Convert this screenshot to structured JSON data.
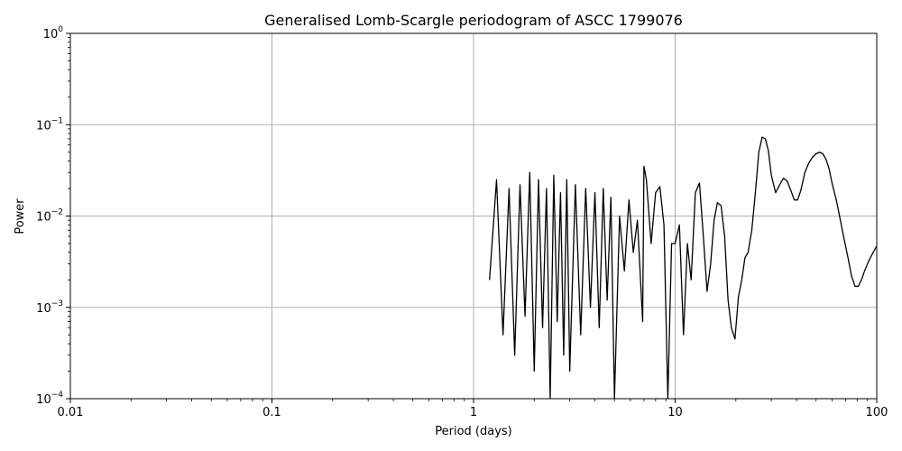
{
  "chart_data": {
    "type": "line",
    "title": "Generalised Lomb-Scargle periodogram of ASCC 1799076",
    "xlabel": "Period (days)",
    "ylabel": "Power",
    "xscale": "log",
    "yscale": "log",
    "xlim": [
      0.01,
      100
    ],
    "ylim": [
      0.0001,
      1
    ],
    "grid": true,
    "line_color": "#000000",
    "x_ticks": [
      {
        "value": 0.01,
        "label": "0.01"
      },
      {
        "value": 0.1,
        "label": "0.1"
      },
      {
        "value": 1,
        "label": "1"
      },
      {
        "value": 10,
        "label": "10"
      },
      {
        "value": 100,
        "label": "100"
      }
    ],
    "y_ticks": [
      {
        "value": 0.0001,
        "base": "10",
        "exp": "−4"
      },
      {
        "value": 0.001,
        "base": "10",
        "exp": "−3"
      },
      {
        "value": 0.01,
        "base": "10",
        "exp": "−2"
      },
      {
        "value": 0.1,
        "base": "10",
        "exp": "−1"
      },
      {
        "value": 1,
        "base": "10",
        "exp": "0"
      }
    ],
    "series": [
      {
        "x": [
          1.2,
          1.3,
          1.4,
          1.5,
          1.6,
          1.7,
          1.8,
          1.9,
          2.0,
          2.1,
          2.2,
          2.3,
          2.4,
          2.5,
          2.6,
          2.7,
          2.8,
          2.9,
          3.0,
          3.2,
          3.4,
          3.6,
          3.8,
          4.0,
          4.2,
          4.4,
          4.6,
          4.8,
          5.0,
          5.3,
          5.6,
          5.9,
          6.2,
          6.5,
          6.9,
          7.0,
          7.2,
          7.6,
          8.0,
          8.4,
          8.8,
          9.2,
          9.6,
          10.0,
          10.5,
          11.0,
          11.5,
          12.0,
          12.6,
          13.2,
          13.8,
          14.4,
          15.0,
          15.6,
          16.2,
          16.9,
          17.6,
          18.3,
          19.0,
          19.8,
          20.6,
          21.4,
          22.2,
          23.0,
          24.0,
          25.0,
          26.0,
          27.0,
          28.0,
          29.0,
          30.0,
          31.5,
          33.0,
          34.5,
          36.0,
          37.5,
          39.0,
          40.5,
          42.0,
          44.0,
          46.0,
          48.0,
          50.0,
          52.0,
          54.0,
          56.0,
          58.0,
          60.0,
          63.0,
          66.0,
          69.0,
          72.0,
          75.0,
          78.0,
          81.0,
          84.0,
          87.0,
          90.0,
          93.0,
          96.0,
          100.0
        ],
        "y": [
          0.002,
          0.025,
          0.0005,
          0.02,
          0.0003,
          0.022,
          0.0008,
          0.03,
          0.0002,
          0.025,
          0.0006,
          0.02,
          0.0001,
          0.028,
          0.0007,
          0.018,
          0.0003,
          0.025,
          0.0002,
          0.022,
          0.0005,
          0.02,
          0.001,
          0.018,
          0.0006,
          0.02,
          0.0012,
          0.016,
          0.0001,
          0.01,
          0.0025,
          0.015,
          0.004,
          0.009,
          0.0007,
          0.035,
          0.025,
          0.005,
          0.018,
          0.021,
          0.008,
          0.0001,
          0.005,
          0.005,
          0.008,
          0.0005,
          0.005,
          0.002,
          0.018,
          0.023,
          0.006,
          0.0015,
          0.003,
          0.009,
          0.014,
          0.013,
          0.006,
          0.0012,
          0.0006,
          0.00045,
          0.0013,
          0.002,
          0.0035,
          0.004,
          0.007,
          0.018,
          0.05,
          0.073,
          0.07,
          0.052,
          0.028,
          0.018,
          0.022,
          0.026,
          0.024,
          0.019,
          0.015,
          0.015,
          0.019,
          0.03,
          0.038,
          0.044,
          0.048,
          0.05,
          0.048,
          0.042,
          0.033,
          0.023,
          0.015,
          0.009,
          0.0055,
          0.0035,
          0.0022,
          0.0017,
          0.0017,
          0.002,
          0.0025,
          0.003,
          0.0035,
          0.004,
          0.0047
        ]
      }
    ]
  }
}
